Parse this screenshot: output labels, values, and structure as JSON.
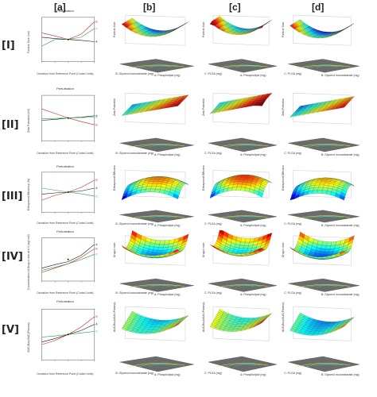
{
  "column_labels": [
    "[a]",
    "[b]",
    "[c]",
    "[d]"
  ],
  "row_labels": [
    "[I]",
    "[II]",
    "[III]",
    "[IV]",
    "[V]"
  ],
  "perturbation": {
    "title": "Perturbation",
    "xlabel": "Deviation from Reference Point (Coded Units)",
    "ylabels": [
      "Particle Size (nm)",
      "Zeta Potential (mV)",
      "Entrapment Efficiency (%)",
      "Concentration of Drug in skin at 6 h (ug/cm2)",
      "AUC(flux)/AUC(Plasma)"
    ],
    "tick_x": [
      "-1.000",
      "-0.500",
      "0.000",
      "0.500",
      "1.000"
    ],
    "curve_letters": [
      "A",
      "B",
      "C"
    ],
    "colors": {
      "A": "#111111",
      "B": "#cc2222",
      "C": "#2a9d4a"
    }
  },
  "surface_axes": {
    "b": {
      "x": "B: Glycerol monostearate (mg)",
      "y": "A: Phospholipid (mg)"
    },
    "c": {
      "x": "C: PLGA (mg)",
      "y": "A: Phospholipid (mg)"
    },
    "d": {
      "x": "C: PLGA (mg)",
      "y": "B: Glycerol monostearate (mg)"
    }
  },
  "surface_zlabels": [
    "Particle Size",
    "Zeta Potential",
    "Entrapment Efficiency",
    "Drug in skin",
    "AUC(flux)/AUC(Plasma)"
  ]
}
